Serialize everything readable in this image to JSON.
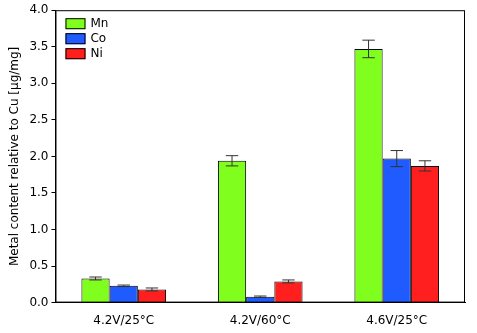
{
  "chart_data": {
    "type": "bar",
    "y_label": "Metal content relative to Cu [µg/mg]",
    "categories": [
      "4.2V/25°C",
      "4.2V/60°C",
      "4.6V/25°C"
    ],
    "series": [
      {
        "name": "Mn",
        "color": "#80ff1f",
        "values": [
          0.33,
          1.94,
          3.47
        ],
        "errors": [
          0.02,
          0.07,
          0.12
        ]
      },
      {
        "name": "Co",
        "color": "#1f5bff",
        "values": [
          0.23,
          0.08,
          1.97
        ],
        "errors": [
          0.01,
          0.01,
          0.11
        ]
      },
      {
        "name": "Ni",
        "color": "#ff1f1f",
        "values": [
          0.18,
          0.29,
          1.87
        ],
        "errors": [
          0.02,
          0.02,
          0.07
        ]
      }
    ],
    "ylim": [
      0,
      4
    ],
    "yticks": [
      {
        "value": 0,
        "label": "0.0"
      },
      {
        "value": 0.5,
        "label": "0.5"
      },
      {
        "value": 1,
        "label": "1.0"
      },
      {
        "value": 1.5,
        "label": "1.5"
      },
      {
        "value": 2,
        "label": "2.0"
      },
      {
        "value": 2.5,
        "label": "2.5"
      },
      {
        "value": 3,
        "label": "3.0"
      },
      {
        "value": 3.5,
        "label": "3.5"
      },
      {
        "value": 4,
        "label": "4.0"
      }
    ],
    "grid": false,
    "legend": "upper left"
  }
}
